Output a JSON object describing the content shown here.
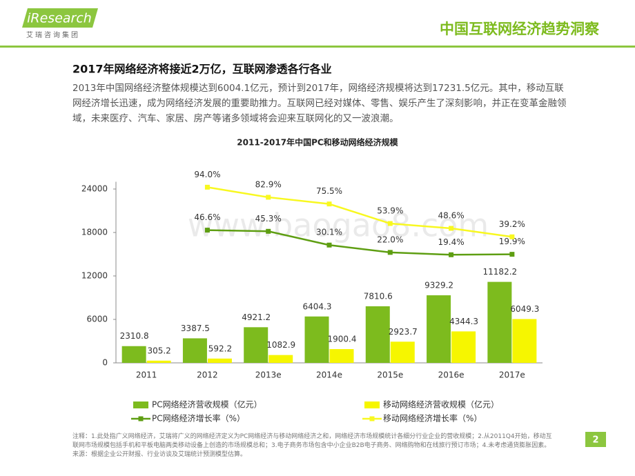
{
  "header": {
    "logo": "iResearch",
    "logo_sub": "艾瑞咨询集团",
    "title": "中国互联网经济趋势洞察"
  },
  "heading": "2017年网络经济将接近2万亿，互联网渗透各行各业",
  "paragraph": "2013年中国网络经济整体规模达到6004.1亿元，预计到2017年，网络经济规模将达到17231.5亿元。其中，移动互联网经济增长迅速，成为网络经济发展的重要助推力。互联网已经对媒体、零售、娱乐产生了深刻影响，并正在变革金融领域，未来医疗、汽车、家居、房产等诸多领域将会迎来互联网化的又一波浪潮。",
  "watermark": "www.baogao8.com",
  "chart_data": {
    "type": "bar",
    "title": "2011-2017年中国PC和移动网络经济规模",
    "categories": [
      "2011",
      "2012",
      "2013e",
      "2014e",
      "2015e",
      "2016e",
      "2017e"
    ],
    "ylim": [
      0,
      25000
    ],
    "yticks": [
      0,
      6000,
      12000,
      18000,
      24000
    ],
    "y2lim": [
      -100,
      100
    ],
    "series": [
      {
        "name": "PC网络经济营收规模（亿元）",
        "type": "bar",
        "color": "#7dbb1e",
        "values": [
          2310.8,
          3387.5,
          4921.2,
          6404.3,
          7810.6,
          9329.2,
          11182.2
        ]
      },
      {
        "name": "移动网络经济营收规模（亿元）",
        "type": "bar",
        "color": "#f6f600",
        "values": [
          305.2,
          592.2,
          1082.9,
          1900.4,
          2923.7,
          4344.3,
          6049.3
        ]
      },
      {
        "name": "PC网络经济增长率（%）",
        "type": "line",
        "axis": "y2",
        "color": "#5e9e12",
        "values": [
          null,
          46.6,
          45.3,
          30.1,
          22.0,
          19.4,
          19.9
        ],
        "value_labels": [
          null,
          "46.6%",
          "45.3%",
          "30.1%",
          "22.0%",
          "19.4%",
          "19.9%"
        ]
      },
      {
        "name": "移动网络经济增长率（%）",
        "type": "line",
        "axis": "y2",
        "color": "#f8f820",
        "values": [
          null,
          94.0,
          82.9,
          75.5,
          53.9,
          48.6,
          39.2
        ],
        "value_labels": [
          null,
          "94.0%",
          "82.9%",
          "75.5%",
          "53.9%",
          "48.6%",
          "39.2%"
        ]
      }
    ]
  },
  "footnote": {
    "note": "注释：1.此处指广义网络经济，艾瑞将广义的网络经济定义为PC网络经济与移动网络经济之和，网络经济市场规模统计各细分行业企业的营收规模；2.从2011Q4开始，移动互联网市场规模包括手机和平板电脑两类移动设备上创造的市场规模总和；3.电子商务市场包含中小企业B2B电子商务、网络购物和在线旅行预订市场；4.未考虑通货膨胀因素。",
    "source": "来源：根据企业公开财报、行业访谈及艾瑞统计预测模型估算。"
  },
  "page_number": "2"
}
